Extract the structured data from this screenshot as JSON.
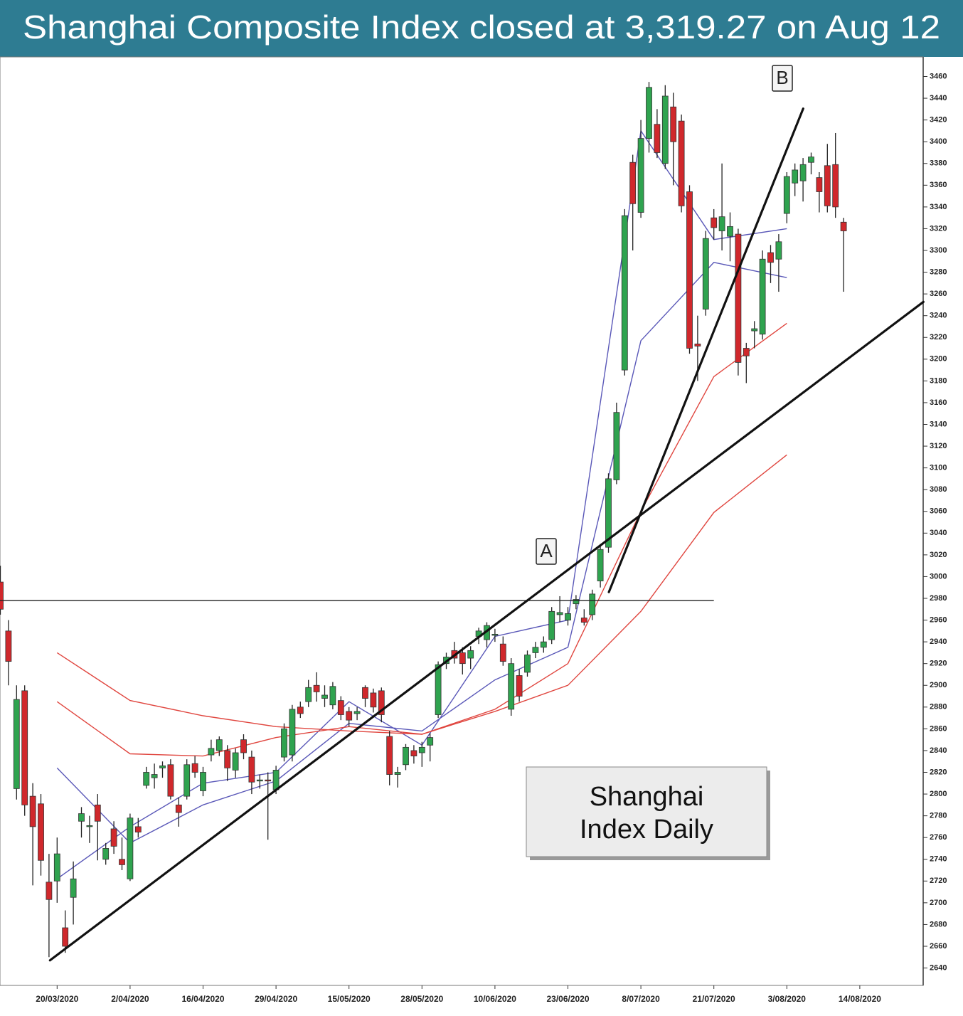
{
  "chart_data": {
    "type": "candlestick",
    "title": "Shanghai Composite Index closed at 3,319.27 on Aug 12",
    "categories": [
      null,
      null,
      null,
      null,
      null,
      null,
      null,
      "20/03/2020",
      null,
      null,
      null,
      null,
      null,
      null,
      null,
      null,
      "2/04/2020",
      null,
      null,
      null,
      null,
      null,
      null,
      null,
      null,
      "16/04/2020",
      null,
      null,
      null,
      null,
      null,
      null,
      null,
      null,
      "29/04/2020",
      null,
      null,
      null,
      null,
      null,
      null,
      null,
      null,
      "15/05/2020",
      null,
      null,
      null,
      null,
      null,
      null,
      null,
      null,
      "28/05/2020",
      null,
      null,
      null,
      null,
      null,
      null,
      null,
      null,
      "10/06/2020",
      null,
      null,
      null,
      null,
      null,
      null,
      null,
      null,
      "23/06/2020",
      null,
      null,
      null,
      null,
      null,
      null,
      null,
      null,
      "8/07/2020",
      null,
      null,
      null,
      null,
      null,
      null,
      null,
      null,
      "21/07/2020",
      null,
      null,
      null,
      null,
      null,
      null,
      null,
      null,
      "3/08/2020",
      null,
      null,
      null,
      null,
      null,
      null,
      null,
      null,
      "14/08/2020"
    ],
    "open": [
      2995,
      2950,
      2805,
      2895,
      2798,
      2791,
      2719,
      2720,
      2677,
      2705,
      2775,
      2770,
      2790,
      2740,
      2768,
      2740,
      2722,
      2770,
      2808,
      2815,
      2824,
      2827,
      2790,
      2798,
      2828,
      2803,
      2836,
      2840,
      2840,
      2822,
      2850,
      2834,
      2812,
      2813,
      2804,
      2834,
      2836,
      2880,
      2885,
      2900,
      2888,
      2882,
      2886,
      2876,
      2874,
      2898,
      2893,
      2895,
      2853,
      2818,
      2827,
      2840,
      2838,
      2845,
      2873,
      2920,
      2932,
      2930,
      2925,
      2945,
      2942,
      2946,
      2938,
      2878,
      2909,
      2912,
      2930,
      2935,
      2942,
      2965,
      2960,
      2975,
      2962,
      2965,
      2996,
      3027,
      3089,
      3190,
      3381,
      3335,
      3403,
      3416,
      3380,
      3432,
      3419,
      3354,
      3214,
      3246,
      3330,
      3318,
      3313,
      3315,
      3210,
      3226,
      3223,
      3298,
      3292,
      3334,
      3362,
      3364,
      3381,
      3367,
      3378,
      3379,
      3326,
      null,
      null
    ],
    "high": [
      3010,
      2960,
      2900,
      2900,
      2810,
      2800,
      2745,
      2760,
      2693,
      2738,
      2788,
      2780,
      2800,
      2755,
      2775,
      2760,
      2782,
      2778,
      2825,
      2828,
      2830,
      2832,
      2797,
      2832,
      2835,
      2825,
      2850,
      2853,
      2845,
      2842,
      2855,
      2840,
      2818,
      2820,
      2826,
      2865,
      2882,
      2885,
      2905,
      2912,
      2900,
      2903,
      2890,
      2880,
      2880,
      2900,
      2897,
      2898,
      2858,
      2825,
      2846,
      2845,
      2848,
      2856,
      2922,
      2930,
      2940,
      2935,
      2936,
      2953,
      2958,
      2952,
      2945,
      2925,
      2915,
      2932,
      2940,
      2945,
      2972,
      2982,
      2972,
      2983,
      2970,
      2988,
      3030,
      3095,
      3160,
      3338,
      3388,
      3420,
      3455,
      3430,
      3452,
      3445,
      3425,
      3360,
      3240,
      3318,
      3338,
      3380,
      3335,
      3320,
      3215,
      3235,
      3300,
      3305,
      3315,
      3372,
      3380,
      3385,
      3390,
      3372,
      3398,
      3408,
      3330,
      null,
      null
    ],
    "low": [
      2965,
      2900,
      2795,
      2780,
      2716,
      2725,
      2650,
      2700,
      2654,
      2680,
      2760,
      2755,
      2739,
      2735,
      2745,
      2730,
      2720,
      2760,
      2805,
      2805,
      2815,
      2795,
      2770,
      2795,
      2815,
      2798,
      2830,
      2835,
      2812,
      2815,
      2832,
      2800,
      2805,
      2758,
      2800,
      2830,
      2830,
      2870,
      2880,
      2885,
      2880,
      2878,
      2868,
      2862,
      2868,
      2880,
      2875,
      2866,
      2808,
      2806,
      2822,
      2828,
      2825,
      2830,
      2870,
      2915,
      2920,
      2910,
      2915,
      2938,
      2935,
      2940,
      2918,
      2872,
      2885,
      2908,
      2925,
      2930,
      2938,
      2958,
      2955,
      2970,
      2955,
      2960,
      2990,
      3022,
      3085,
      3185,
      3300,
      3330,
      3390,
      3385,
      3375,
      3360,
      3335,
      3205,
      3180,
      3240,
      3310,
      3300,
      3290,
      3185,
      3178,
      3210,
      3218,
      3270,
      3262,
      3325,
      3350,
      3345,
      3370,
      3335,
      3335,
      3330,
      3262,
      null,
      null
    ],
    "close": [
      2970,
      2922,
      2887,
      2790,
      2770,
      2739,
      2703,
      2745,
      2660,
      2722,
      2782,
      2771,
      2775,
      2750,
      2752,
      2735,
      2778,
      2765,
      2820,
      2818,
      2826,
      2798,
      2783,
      2827,
      2820,
      2820,
      2842,
      2850,
      2824,
      2838,
      2838,
      2811,
      2813,
      2812,
      2822,
      2860,
      2878,
      2874,
      2898,
      2894,
      2891,
      2899,
      2873,
      2868,
      2876,
      2888,
      2880,
      2873,
      2818,
      2820,
      2843,
      2835,
      2843,
      2852,
      2919,
      2926,
      2925,
      2920,
      2932,
      2950,
      2955,
      2947,
      2922,
      2920,
      2890,
      2928,
      2935,
      2940,
      2968,
      2967,
      2966,
      2979,
      2958,
      2984,
      3025,
      3090,
      3151,
      3332,
      3343,
      3403,
      3450,
      3390,
      3442,
      3400,
      3341,
      3210,
      3212,
      3311,
      3321,
      3331,
      3322,
      3197,
      3203,
      3228,
      3292,
      3289,
      3308,
      3368,
      3374,
      3379,
      3386,
      3354,
      3341,
      3340,
      3318,
      null,
      null
    ],
    "up_color": "#2fa34f",
    "down_color": "#d0282c",
    "ylim": [
      2624,
      3478
    ],
    "yticks": [
      2640,
      2660,
      2680,
      2700,
      2720,
      2740,
      2760,
      2780,
      2800,
      2820,
      2840,
      2860,
      2880,
      2900,
      2920,
      2940,
      2960,
      2980,
      3000,
      3020,
      3040,
      3060,
      3080,
      3100,
      3120,
      3140,
      3160,
      3180,
      3200,
      3220,
      3240,
      3260,
      3280,
      3300,
      3320,
      3340,
      3360,
      3380,
      3400,
      3420,
      3440,
      3460
    ],
    "grid": false,
    "lines": [
      {
        "color": "#5a58b8",
        "x": [
          "20/03/2020",
          "2/04/2020",
          "16/04/2020",
          "29/04/2020",
          "15/05/2020",
          "28/05/2020",
          "10/06/2020",
          "23/06/2020",
          "8/07/2020",
          "21/07/2020",
          "3/08/2020"
        ],
        "values": [
          2722,
          2770,
          2810,
          2820,
          2885,
          2845,
          2945,
          2960,
          3410,
          3310,
          3320
        ]
      },
      {
        "color": "#5a58b8",
        "x": [
          "20/03/2020",
          "2/04/2020",
          "16/04/2020",
          "29/04/2020",
          "15/05/2020",
          "28/05/2020",
          "10/06/2020",
          "23/06/2020",
          "8/07/2020",
          "21/07/2020",
          "3/08/2020"
        ],
        "values": [
          2824,
          2755,
          2790,
          2812,
          2865,
          2858,
          2905,
          2935,
          3217,
          3289,
          3275
        ]
      },
      {
        "color": "#e0463f",
        "x": [
          "20/03/2020",
          "2/04/2020",
          "16/04/2020",
          "29/04/2020",
          "15/05/2020",
          "28/05/2020",
          "10/06/2020",
          "23/06/2020",
          "8/07/2020",
          "21/07/2020",
          "3/08/2020"
        ],
        "values": [
          2885,
          2837,
          2835,
          2852,
          2862,
          2855,
          2878,
          2920,
          3060,
          3184,
          3233
        ]
      },
      {
        "color": "#e0463f",
        "x": [
          "20/03/2020",
          "2/04/2020",
          "16/04/2020",
          "29/04/2020",
          "15/05/2020",
          "28/05/2020",
          "10/06/2020",
          "23/06/2020",
          "8/07/2020",
          "21/07/2020",
          "3/08/2020"
        ],
        "values": [
          2930,
          2886,
          2872,
          2862,
          2858,
          2855,
          2876,
          2900,
          2968,
          3059,
          3112
        ]
      }
    ],
    "trend_lines": [
      {
        "label": "A",
        "from": [
          "20/03/2020",
          2652
        ],
        "to": [
          "3/08/2020",
          3158
        ]
      },
      {
        "label": "B",
        "from": [
          "8/07/2020",
          3059
        ],
        "to": [
          "3/08/2020",
          3393
        ]
      }
    ],
    "reference_line": {
      "value": 2978,
      "to": "21/07/2020"
    },
    "label_box": [
      "Shanghai",
      "Index Daily"
    ]
  }
}
